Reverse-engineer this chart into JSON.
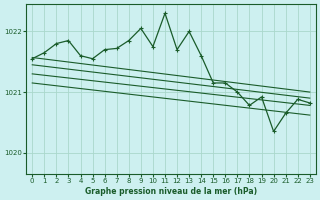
{
  "title": "Graphe pression niveau de la mer (hPa)",
  "background_color": "#cdf0f0",
  "grid_color": "#aad8cc",
  "line_color": "#1a5c2a",
  "xlim": [
    -0.5,
    23.5
  ],
  "ylim": [
    1019.65,
    1022.45
  ],
  "yticks": [
    1020,
    1021,
    1022
  ],
  "xticks": [
    0,
    1,
    2,
    3,
    4,
    5,
    6,
    7,
    8,
    9,
    10,
    11,
    12,
    13,
    14,
    15,
    16,
    17,
    18,
    19,
    20,
    21,
    22,
    23
  ],
  "series": {
    "active": {
      "x": [
        0,
        1,
        2,
        3,
        4,
        5,
        6,
        7,
        8,
        9,
        10,
        11,
        12,
        13,
        14,
        15,
        16,
        17,
        18,
        19,
        20,
        21,
        22,
        23
      ],
      "y": [
        1021.55,
        1021.65,
        1021.8,
        1021.85,
        1021.6,
        1021.55,
        1021.7,
        1021.72,
        1021.85,
        1022.05,
        1021.75,
        1022.3,
        1021.7,
        1022.0,
        1021.6,
        1021.15,
        1021.15,
        1021.0,
        1020.78,
        1020.92,
        1020.35,
        1020.65,
        1020.88,
        1020.82
      ]
    },
    "trend_upper": {
      "x": [
        0,
        23
      ],
      "y": [
        1021.57,
        1021.0
      ]
    },
    "trend_mid1": {
      "x": [
        0,
        23
      ],
      "y": [
        1021.45,
        1020.9
      ]
    },
    "trend_mid2": {
      "x": [
        0,
        23
      ],
      "y": [
        1021.3,
        1020.78
      ]
    },
    "trend_lower": {
      "x": [
        0,
        23
      ],
      "y": [
        1021.15,
        1020.62
      ]
    }
  }
}
